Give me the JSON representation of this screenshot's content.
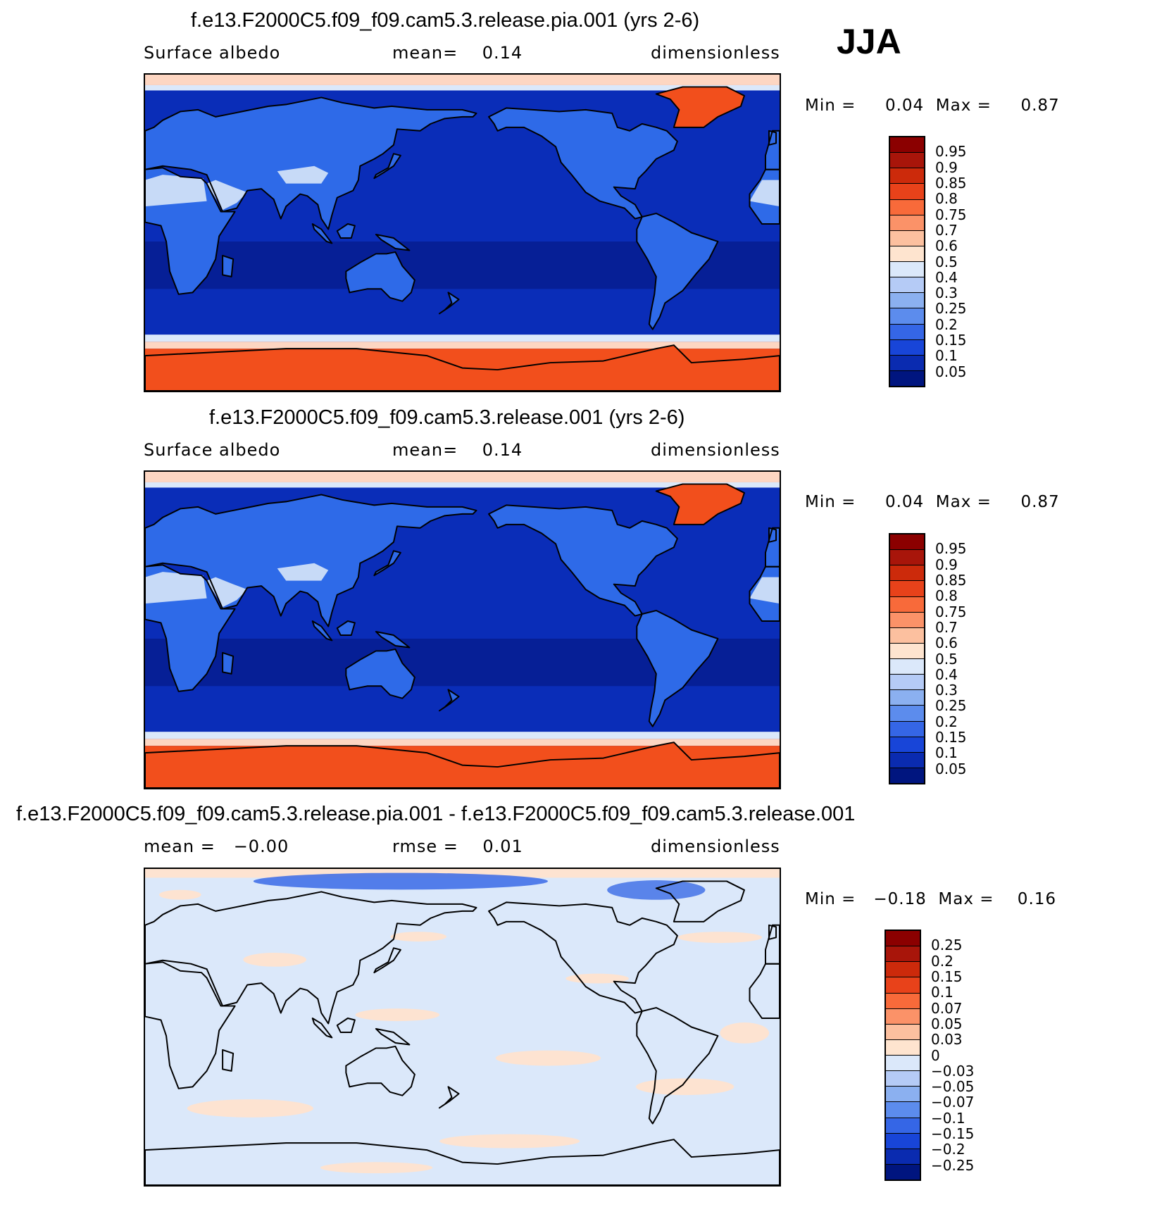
{
  "season": "JJA",
  "panels": [
    {
      "title": "f.e13.F2000C5.f09_f09.cam5.3.release.pia.001 (yrs 2-6)",
      "left": "Surface albedo",
      "center": "mean=    0.14",
      "right": "dimensionless",
      "minmax": "Min =     0.04  Max =     0.87",
      "scheme": "abs",
      "colorbar_labels": [
        "0.95",
        "0.9",
        "0.85",
        "0.8",
        "0.75",
        "0.7",
        "0.6",
        "0.5",
        "0.4",
        "0.3",
        "0.25",
        "0.2",
        "0.15",
        "0.1",
        "0.05"
      ]
    },
    {
      "title": "f.e13.F2000C5.f09_f09.cam5.3.release.001 (yrs 2-6)",
      "left": "Surface albedo",
      "center": "mean=    0.14",
      "right": "dimensionless",
      "minmax": "Min =     0.04  Max =     0.87",
      "scheme": "abs",
      "colorbar_labels": [
        "0.95",
        "0.9",
        "0.85",
        "0.8",
        "0.75",
        "0.7",
        "0.6",
        "0.5",
        "0.4",
        "0.3",
        "0.25",
        "0.2",
        "0.15",
        "0.1",
        "0.05"
      ]
    },
    {
      "title": "f.e13.F2000C5.f09_f09.cam5.3.release.pia.001 - f.e13.F2000C5.f09_f09.cam5.3.release.001",
      "left": "mean =   −0.00",
      "center": "rmse =    0.01",
      "right": "dimensionless",
      "minmax": "Min =   −0.18  Max =    0.16",
      "scheme": "diff",
      "colorbar_labels": [
        "0.25",
        "0.2",
        "0.15",
        "0.1",
        "0.07",
        "0.05",
        "0.03",
        "0",
        "−0.03",
        "−0.05",
        "−0.07",
        "−0.1",
        "−0.15",
        "−0.2",
        "−0.25"
      ]
    }
  ],
  "colors": {
    "scale": [
      "#8b0000",
      "#a8150a",
      "#cc2a0b",
      "#e8421a",
      "#f86a3a",
      "#fb9268",
      "#fcc09f",
      "#fee4cf",
      "#dbe8fa",
      "#b5cbf6",
      "#8bb0f0",
      "#5c8ced",
      "#3566e6",
      "#1845d8",
      "#0a2bb0",
      "#00157f"
    ],
    "land_abs": "#2e6ae8",
    "ocean_abs": "#0a2db8",
    "ocean_deep": "#061f96",
    "sea_ice": "#f24f1c",
    "pack_ice": "#fdd6c2",
    "desert": "#c7daf7",
    "diff_blue": "#dbe8fa",
    "diff_peach": "#fde3d1",
    "diff_neg": "#3a6ae6",
    "diff_pos": "#fbbd9e"
  }
}
